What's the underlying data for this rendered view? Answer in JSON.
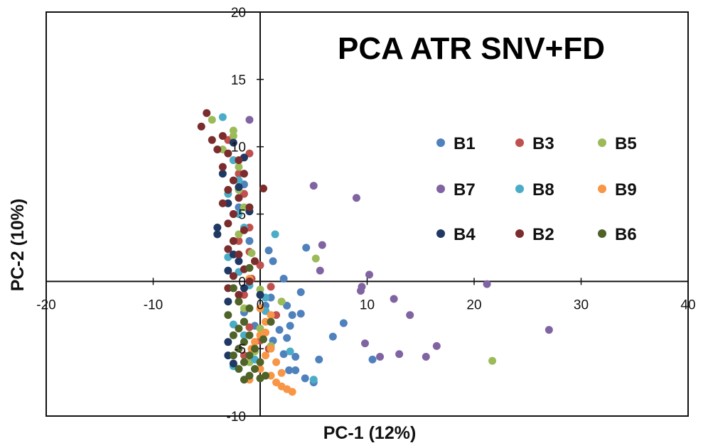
{
  "chart_data": {
    "type": "scatter",
    "title": "PCA ATR SNV+FD",
    "xlabel": "PC-1 (12%)",
    "ylabel": "PC-2 (10%)",
    "xlim": [
      -20,
      40
    ],
    "ylim": [
      -10,
      20
    ],
    "xticks": [
      -20,
      -10,
      0,
      10,
      20,
      30,
      40
    ],
    "yticks": [
      -10,
      -5,
      0,
      5,
      10,
      15,
      20
    ],
    "grid": false,
    "legend_position": "right",
    "series": [
      {
        "name": "B1",
        "color": "#4F81BD",
        "points": [
          [
            -1.5,
            7.2
          ],
          [
            -2.0,
            5.5
          ],
          [
            -1.0,
            3.0
          ],
          [
            0.8,
            2.3
          ],
          [
            1.2,
            1.5
          ],
          [
            2.2,
            0.2
          ],
          [
            3.8,
            -0.8
          ],
          [
            1.0,
            -1.2
          ],
          [
            2.5,
            -1.8
          ],
          [
            3.0,
            -2.5
          ],
          [
            3.8,
            -2.4
          ],
          [
            2.8,
            -3.3
          ],
          [
            1.8,
            -3.6
          ],
          [
            -0.5,
            -3.3
          ],
          [
            1.2,
            -4.4
          ],
          [
            2.2,
            -5.4
          ],
          [
            3.3,
            -5.6
          ],
          [
            4.2,
            -7.2
          ],
          [
            5.5,
            -5.8
          ],
          [
            6.8,
            -4.1
          ],
          [
            7.8,
            -3.1
          ],
          [
            10.5,
            -5.8
          ],
          [
            4.3,
            2.5
          ],
          [
            2.7,
            -6.6
          ],
          [
            3.3,
            -6.6
          ],
          [
            5.0,
            -7.5
          ],
          [
            0.5,
            -1.8
          ],
          [
            -1.5,
            -2.3
          ],
          [
            1.0,
            -3.0
          ],
          [
            2.5,
            -4.2
          ]
        ]
      },
      {
        "name": "B3",
        "color": "#C0504D",
        "points": [
          [
            -3.0,
            10.5
          ],
          [
            -2.5,
            9.0
          ],
          [
            -1.0,
            9.5
          ],
          [
            -2.0,
            8.0
          ],
          [
            -1.5,
            6.5
          ],
          [
            -2.5,
            5.0
          ],
          [
            -1.0,
            4.0
          ],
          [
            -2.0,
            3.0
          ],
          [
            -1.0,
            2.2
          ],
          [
            0.0,
            1.2
          ],
          [
            -0.8,
            0.2
          ],
          [
            1.0,
            -0.4
          ],
          [
            -1.5,
            -1.0
          ],
          [
            0.5,
            -2.2
          ],
          [
            -2.0,
            -1.5
          ],
          [
            1.5,
            -2.5
          ],
          [
            -1.0,
            -3.4
          ],
          [
            0.0,
            -4.4
          ],
          [
            0.8,
            -5.0
          ],
          [
            -1.5,
            -5.5
          ]
        ]
      },
      {
        "name": "B5",
        "color": "#9BBB59",
        "points": [
          [
            -4.5,
            12.0
          ],
          [
            -2.5,
            11.2
          ],
          [
            -2.5,
            10.8
          ],
          [
            -3.5,
            9.8
          ],
          [
            -2.0,
            8.5
          ],
          [
            -2.0,
            6.8
          ],
          [
            -1.5,
            5.5
          ],
          [
            -0.8,
            2.1
          ],
          [
            5.2,
            1.7
          ],
          [
            -2.0,
            3.5
          ],
          [
            0.0,
            -0.6
          ],
          [
            -1.5,
            -2.0
          ],
          [
            1.0,
            -4.8
          ],
          [
            21.7,
            -5.9
          ],
          [
            -1.0,
            -6.0
          ],
          [
            0.0,
            -3.5
          ],
          [
            2.0,
            -1.5
          ],
          [
            -0.5,
            -5.2
          ]
        ]
      },
      {
        "name": "B7",
        "color": "#8064A2",
        "points": [
          [
            -1.0,
            12.0
          ],
          [
            5.0,
            7.1
          ],
          [
            9.0,
            6.2
          ],
          [
            5.8,
            2.7
          ],
          [
            5.6,
            0.8
          ],
          [
            10.2,
            0.5
          ],
          [
            9.5,
            -0.4
          ],
          [
            9.4,
            -0.7
          ],
          [
            12.5,
            -1.3
          ],
          [
            14.0,
            -2.5
          ],
          [
            21.2,
            -0.2
          ],
          [
            27.0,
            -3.6
          ],
          [
            9.8,
            -4.6
          ],
          [
            11.2,
            -5.6
          ],
          [
            13.0,
            -5.4
          ],
          [
            15.5,
            -5.6
          ],
          [
            16.5,
            -4.8
          ]
        ]
      },
      {
        "name": "B8",
        "color": "#4BACC6",
        "points": [
          [
            -3.5,
            12.2
          ],
          [
            -2.5,
            9.0
          ],
          [
            -2.0,
            7.5
          ],
          [
            -3.0,
            6.5
          ],
          [
            -2.0,
            5.0
          ],
          [
            -1.5,
            4.0
          ],
          [
            1.4,
            3.5
          ],
          [
            -3.0,
            1.8
          ],
          [
            -2.0,
            0.7
          ],
          [
            -1.0,
            -0.3
          ],
          [
            0.5,
            -1.2
          ],
          [
            -2.5,
            -3.2
          ],
          [
            -1.5,
            -4.0
          ],
          [
            2.8,
            -5.2
          ],
          [
            -0.5,
            -5.8
          ],
          [
            5.0,
            -7.3
          ],
          [
            -2.5,
            -6.3
          ],
          [
            0.5,
            -2.2
          ]
        ]
      },
      {
        "name": "B9",
        "color": "#F79646",
        "points": [
          [
            -0.5,
            1.5
          ],
          [
            -1.0,
            0.2
          ],
          [
            0.0,
            -2.0
          ],
          [
            1.0,
            -2.5
          ],
          [
            0.5,
            -3.0
          ],
          [
            0.0,
            -4.0
          ],
          [
            -0.5,
            -4.5
          ],
          [
            1.0,
            -5.0
          ],
          [
            0.5,
            -5.5
          ],
          [
            1.5,
            -6.0
          ],
          [
            0.0,
            -6.5
          ],
          [
            1.0,
            -7.0
          ],
          [
            1.5,
            -7.5
          ],
          [
            2.0,
            -7.8
          ],
          [
            2.5,
            -8.0
          ],
          [
            3.0,
            -8.2
          ],
          [
            -1.0,
            -7.3
          ],
          [
            -0.8,
            -5.0
          ],
          [
            0.5,
            -3.8
          ],
          [
            2.0,
            -6.8
          ]
        ]
      },
      {
        "name": "B4",
        "color": "#1F3864",
        "points": [
          [
            -2.5,
            10.3
          ],
          [
            -1.5,
            9.2
          ],
          [
            -3.5,
            8.0
          ],
          [
            -2.0,
            7.0
          ],
          [
            -3.0,
            5.8
          ],
          [
            -1.0,
            5.2
          ],
          [
            -4.0,
            3.5
          ],
          [
            -2.5,
            2.0
          ],
          [
            -3.0,
            0.8
          ],
          [
            -1.5,
            -0.5
          ],
          [
            -3.0,
            -1.5
          ],
          [
            0.0,
            -1.0
          ],
          [
            -1.5,
            -3.0
          ],
          [
            -3.0,
            -4.5
          ],
          [
            -2.5,
            -6.1
          ],
          [
            -3.0,
            -5.5
          ],
          [
            -4.0,
            4.0
          ],
          [
            -2.0,
            1.5
          ]
        ]
      },
      {
        "name": "B2",
        "color": "#7B2C2C",
        "points": [
          [
            -5.0,
            12.5
          ],
          [
            -5.5,
            11.5
          ],
          [
            -4.5,
            10.5
          ],
          [
            -3.5,
            10.8
          ],
          [
            -4.0,
            9.8
          ],
          [
            -3.0,
            9.5
          ],
          [
            -2.0,
            9.0
          ],
          [
            -3.5,
            8.5
          ],
          [
            -1.5,
            8.0
          ],
          [
            -2.5,
            7.5
          ],
          [
            0.3,
            6.9
          ],
          [
            -3.0,
            6.8
          ],
          [
            -2.0,
            6.2
          ],
          [
            -3.5,
            5.8
          ],
          [
            -1.0,
            5.5
          ],
          [
            -2.5,
            5.0
          ],
          [
            -3.0,
            4.3
          ],
          [
            -1.5,
            3.8
          ],
          [
            -2.5,
            3.0
          ],
          [
            -3.0,
            2.4
          ],
          [
            -2.0,
            2.0
          ],
          [
            -0.5,
            1.5
          ],
          [
            -1.5,
            0.9
          ],
          [
            -2.5,
            0.4
          ],
          [
            -1.0,
            0.0
          ],
          [
            -3.0,
            -0.5
          ],
          [
            -2.0,
            -1.0
          ]
        ]
      },
      {
        "name": "B6",
        "color": "#4F6228",
        "points": [
          [
            -1.0,
            1.0
          ],
          [
            -2.5,
            -0.5
          ],
          [
            -2.0,
            -1.5
          ],
          [
            -1.0,
            -2.0
          ],
          [
            -3.0,
            -2.5
          ],
          [
            -1.5,
            -3.0
          ],
          [
            -2.0,
            -3.5
          ],
          [
            -1.0,
            -4.0
          ],
          [
            -2.5,
            -4.0
          ],
          [
            -1.5,
            -4.5
          ],
          [
            -0.5,
            -5.0
          ],
          [
            -2.0,
            -5.0
          ],
          [
            -1.0,
            -5.5
          ],
          [
            -2.5,
            -5.5
          ],
          [
            0.0,
            -6.0
          ],
          [
            -1.5,
            -6.0
          ],
          [
            -0.5,
            -6.5
          ],
          [
            -2.0,
            -6.5
          ],
          [
            0.5,
            -7.0
          ],
          [
            -1.0,
            -7.0
          ],
          [
            0.0,
            -7.2
          ],
          [
            -1.5,
            -7.3
          ],
          [
            1.0,
            -3.0
          ],
          [
            0.3,
            -4.3
          ]
        ]
      }
    ],
    "legend": [
      {
        "label": "B1",
        "color": "#4F81BD"
      },
      {
        "label": "B3",
        "color": "#C0504D"
      },
      {
        "label": "B5",
        "color": "#9BBB59"
      },
      {
        "label": "B7",
        "color": "#8064A2"
      },
      {
        "label": "B8",
        "color": "#4BACC6"
      },
      {
        "label": "B9",
        "color": "#F79646"
      },
      {
        "label": "B4",
        "color": "#1F3864"
      },
      {
        "label": "B2",
        "color": "#7B2C2C"
      },
      {
        "label": "B6",
        "color": "#4F6228"
      }
    ]
  }
}
